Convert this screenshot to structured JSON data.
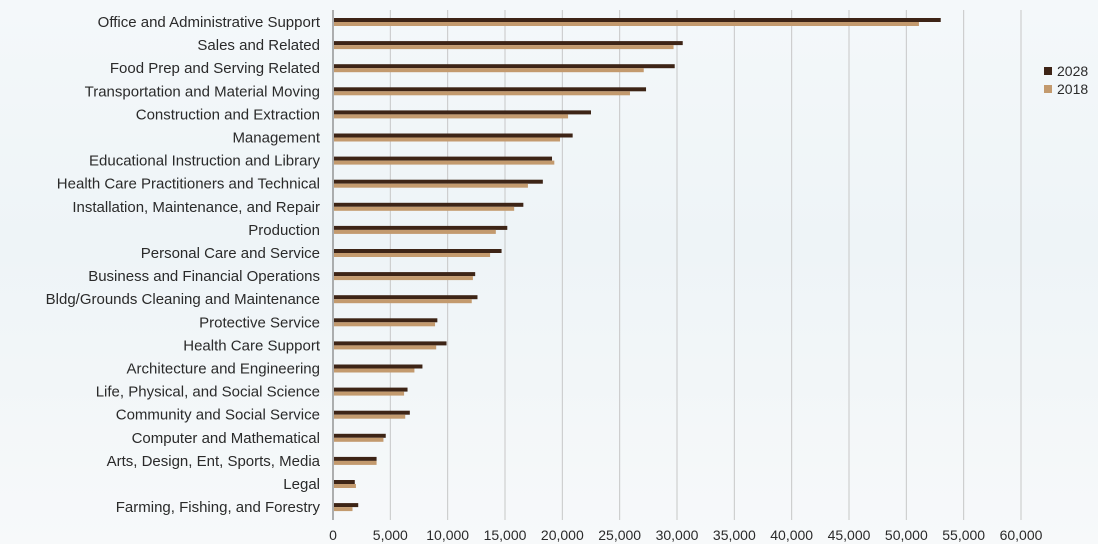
{
  "chart_data": {
    "type": "bar",
    "orientation": "horizontal",
    "title": "",
    "xlabel": "",
    "ylabel": "",
    "categories": [
      "Office and Administrative Support",
      "Sales and Related",
      "Food Prep and Serving Related",
      "Transportation and Material Moving",
      "Construction and Extraction",
      "Management",
      "Educational Instruction and Library",
      "Health Care Practitioners and Technical",
      "Installation, Maintenance, and Repair",
      "Production",
      "Personal Care and Service",
      "Business and Financial Operations",
      "Bldg/Grounds Cleaning and Maintenance",
      "Protective Service",
      "Health Care Support",
      "Architecture and Engineering",
      "Life, Physical, and Social Science",
      "Community and Social Service",
      "Computer and Mathematical",
      "Arts, Design, Ent, Sports, Media",
      "Legal",
      "Farming, Fishing, and Forestry"
    ],
    "series": [
      {
        "name": "2028",
        "color": "#3d2416",
        "values": [
          53000,
          30500,
          29800,
          27300,
          22500,
          20900,
          19100,
          18300,
          16600,
          15200,
          14700,
          12400,
          12600,
          9100,
          9900,
          7800,
          6500,
          6700,
          4600,
          3800,
          1900,
          2200
        ]
      },
      {
        "name": "2018",
        "color": "#c39a6e",
        "values": [
          51100,
          29700,
          27100,
          25900,
          20500,
          19800,
          19300,
          17000,
          15800,
          14200,
          13700,
          12200,
          12100,
          8900,
          9000,
          7100,
          6200,
          6300,
          4400,
          3800,
          2000,
          1700
        ]
      }
    ],
    "xlim": [
      0,
      60000
    ],
    "xticks": [
      0,
      5000,
      10000,
      15000,
      20000,
      25000,
      30000,
      35000,
      40000,
      45000,
      50000,
      55000,
      60000
    ],
    "xtick_labels": [
      "0",
      "5,000",
      "10,000",
      "15,000",
      "20,000",
      "25,000",
      "30,000",
      "35,000",
      "40,000",
      "45,000",
      "50,000",
      "55,000",
      "60,000"
    ],
    "grid": "vertical",
    "legend_position": "right"
  }
}
